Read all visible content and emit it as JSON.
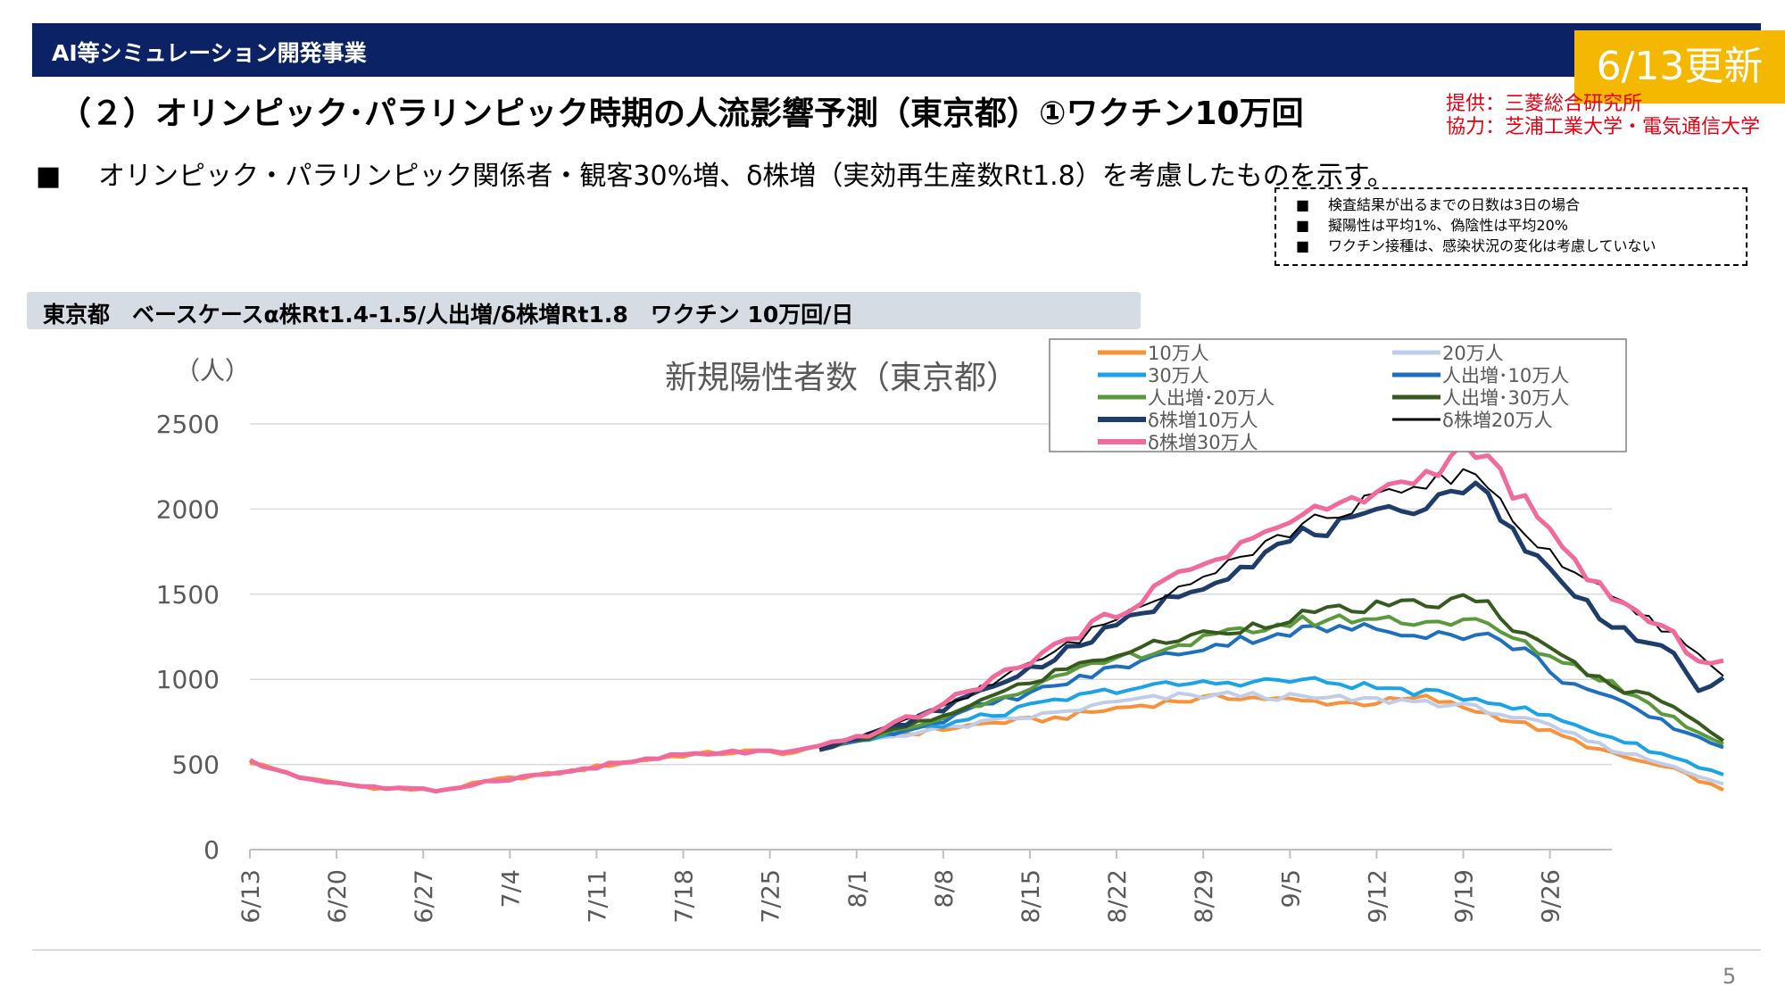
{
  "header": {
    "title": "AI等シミュレーション開発事業",
    "update_badge": "6/13更新"
  },
  "page_title": "（２）オリンピック･パラリンピック時期の人流影響予測（東京都）①ワクチン10万回",
  "credits": {
    "provider": "提供：三菱総合研究所",
    "cooperation": "協力：芝浦工業大学・電気通信大学"
  },
  "bullet": {
    "marker": "■",
    "text": "オリンピック・パラリンピック関係者・観客30%増、δ株増（実効再生産数Rt1.8）を考慮したものを示す。"
  },
  "notes": {
    "marker": "■",
    "items": [
      "検査結果が出るまでの日数は3日の場合",
      "擬陽性は平均1%、偽陰性は平均20%",
      "ワクチン接種は、感染状況の変化は考慮していない"
    ]
  },
  "scenario_label": "東京都　ベースケースα株Rt1.4-1.5/人出増/δ株増Rt1.8　ワクチン 10万回/日",
  "page_number": "5",
  "colors": {
    "header_bg": "#0b2265",
    "badge_bg": "#f5b800",
    "credit_text": "#e60012"
  },
  "chart_data": {
    "type": "line",
    "title": "新規陽性者数（東京都）",
    "ylabel": "（人）",
    "xlabel": "",
    "ylim": [
      0,
      2500
    ],
    "yticks": [
      0,
      500,
      1000,
      1500,
      2000,
      2500
    ],
    "grid": true,
    "legend_position": "top-right",
    "x_start": "6/13",
    "x_tick_labels": [
      "6/13",
      "6/20",
      "6/27",
      "7/4",
      "7/11",
      "7/18",
      "7/25",
      "8/1",
      "8/8",
      "8/15",
      "8/22",
      "8/29",
      "9/5",
      "9/12",
      "9/19",
      "9/26"
    ],
    "x_tick_interval_days": 7,
    "x_count": 111,
    "series": [
      {
        "name": "10万人",
        "color": "#f7923a",
        "width": 4,
        "points": [
          [
            0,
            515
          ],
          [
            5,
            410
          ],
          [
            10,
            365
          ],
          [
            15,
            345
          ],
          [
            20,
            410
          ],
          [
            25,
            450
          ],
          [
            30,
            510
          ],
          [
            35,
            555
          ],
          [
            40,
            575
          ],
          [
            44,
            570
          ],
          [
            46,
            600
          ],
          [
            50,
            650
          ],
          [
            55,
            700
          ],
          [
            60,
            745
          ],
          [
            65,
            770
          ],
          [
            70,
            830
          ],
          [
            75,
            875
          ],
          [
            80,
            900
          ],
          [
            85,
            870
          ],
          [
            90,
            860
          ],
          [
            95,
            890
          ],
          [
            100,
            800
          ],
          [
            105,
            690
          ],
          [
            110,
            560
          ],
          [
            115,
            470
          ],
          [
            119,
            350
          ]
        ]
      },
      {
        "name": "20万人",
        "color": "#bfcde8",
        "width": 4,
        "points": [
          [
            46,
            600
          ],
          [
            50,
            650
          ],
          [
            55,
            700
          ],
          [
            60,
            750
          ],
          [
            65,
            800
          ],
          [
            70,
            865
          ],
          [
            75,
            900
          ],
          [
            80,
            910
          ],
          [
            85,
            890
          ],
          [
            90,
            880
          ],
          [
            95,
            870
          ],
          [
            100,
            820
          ],
          [
            105,
            720
          ],
          [
            110,
            590
          ],
          [
            115,
            490
          ],
          [
            119,
            385
          ]
        ]
      },
      {
        "name": "30万人",
        "color": "#1ba3e6",
        "width": 4,
        "points": [
          [
            46,
            600
          ],
          [
            50,
            650
          ],
          [
            55,
            720
          ],
          [
            60,
            790
          ],
          [
            65,
            870
          ],
          [
            70,
            940
          ],
          [
            75,
            970
          ],
          [
            80,
            985
          ],
          [
            85,
            995
          ],
          [
            90,
            960
          ],
          [
            95,
            920
          ],
          [
            100,
            880
          ],
          [
            105,
            780
          ],
          [
            110,
            660
          ],
          [
            115,
            540
          ],
          [
            119,
            440
          ]
        ]
      },
      {
        "name": "人出増･10万人",
        "color": "#1f6fbf",
        "width": 4,
        "points": [
          [
            46,
            600
          ],
          [
            50,
            660
          ],
          [
            55,
            740
          ],
          [
            60,
            860
          ],
          [
            65,
            960
          ],
          [
            70,
            1070
          ],
          [
            75,
            1160
          ],
          [
            80,
            1230
          ],
          [
            85,
            1290
          ],
          [
            90,
            1300
          ],
          [
            95,
            1270
          ],
          [
            98,
            1260
          ],
          [
            100,
            1250
          ],
          [
            103,
            1170
          ],
          [
            106,
            1000
          ],
          [
            110,
            880
          ],
          [
            115,
            720
          ],
          [
            119,
            600
          ]
        ]
      },
      {
        "name": "人出増･20万人",
        "color": "#5b9a3c",
        "width": 4,
        "points": [
          [
            46,
            600
          ],
          [
            50,
            660
          ],
          [
            55,
            750
          ],
          [
            60,
            890
          ],
          [
            65,
            1000
          ],
          [
            70,
            1120
          ],
          [
            75,
            1200
          ],
          [
            80,
            1280
          ],
          [
            85,
            1340
          ],
          [
            90,
            1360
          ],
          [
            95,
            1340
          ],
          [
            98,
            1340
          ],
          [
            100,
            1320
          ],
          [
            103,
            1200
          ],
          [
            106,
            1110
          ],
          [
            110,
            980
          ],
          [
            115,
            770
          ],
          [
            119,
            620
          ]
        ]
      },
      {
        "name": "人出増･30万人",
        "color": "#375a1f",
        "width": 4,
        "points": [
          [
            46,
            600
          ],
          [
            50,
            660
          ],
          [
            55,
            760
          ],
          [
            60,
            900
          ],
          [
            65,
            1040
          ],
          [
            70,
            1150
          ],
          [
            75,
            1240
          ],
          [
            80,
            1300
          ],
          [
            85,
            1380
          ],
          [
            90,
            1420
          ],
          [
            95,
            1440
          ],
          [
            98,
            1470
          ],
          [
            100,
            1440
          ],
          [
            103,
            1250
          ],
          [
            106,
            1130
          ],
          [
            110,
            960
          ],
          [
            115,
            860
          ],
          [
            119,
            640
          ]
        ]
      },
      {
        "name": "δ株増10万人",
        "color": "#1f3d6b",
        "width": 5,
        "points": [
          [
            46,
            600
          ],
          [
            50,
            670
          ],
          [
            55,
            800
          ],
          [
            60,
            960
          ],
          [
            65,
            1130
          ],
          [
            70,
            1310
          ],
          [
            75,
            1500
          ],
          [
            80,
            1660
          ],
          [
            85,
            1850
          ],
          [
            90,
            1930
          ],
          [
            95,
            2040
          ],
          [
            98,
            2140
          ],
          [
            100,
            2080
          ],
          [
            103,
            1780
          ],
          [
            106,
            1560
          ],
          [
            110,
            1330
          ],
          [
            115,
            1130
          ],
          [
            117,
            940
          ],
          [
            119,
            1010
          ]
        ]
      },
      {
        "name": "δ株増20万人",
        "color": "#000000",
        "width": 2,
        "points": [
          [
            46,
            600
          ],
          [
            50,
            670
          ],
          [
            55,
            810
          ],
          [
            60,
            980
          ],
          [
            65,
            1160
          ],
          [
            70,
            1360
          ],
          [
            75,
            1560
          ],
          [
            80,
            1730
          ],
          [
            85,
            1900
          ],
          [
            90,
            2040
          ],
          [
            95,
            2130
          ],
          [
            98,
            2230
          ],
          [
            100,
            2150
          ],
          [
            103,
            1850
          ],
          [
            106,
            1690
          ],
          [
            110,
            1470
          ],
          [
            115,
            1260
          ],
          [
            119,
            1020
          ]
        ]
      },
      {
        "name": "δ株増30万人",
        "color": "#f06a9b",
        "width": 5,
        "points": [
          [
            0,
            515
          ],
          [
            5,
            410
          ],
          [
            10,
            365
          ],
          [
            15,
            345
          ],
          [
            20,
            410
          ],
          [
            25,
            450
          ],
          [
            30,
            510
          ],
          [
            35,
            555
          ],
          [
            40,
            575
          ],
          [
            44,
            570
          ],
          [
            46,
            600
          ],
          [
            50,
            680
          ],
          [
            55,
            820
          ],
          [
            60,
            1000
          ],
          [
            65,
            1190
          ],
          [
            70,
            1390
          ],
          [
            75,
            1610
          ],
          [
            80,
            1790
          ],
          [
            85,
            1960
          ],
          [
            90,
            2070
          ],
          [
            95,
            2200
          ],
          [
            98,
            2350
          ],
          [
            100,
            2280
          ],
          [
            103,
            2030
          ],
          [
            106,
            1760
          ],
          [
            110,
            1480
          ],
          [
            115,
            1250
          ],
          [
            117,
            1120
          ],
          [
            119,
            1110
          ]
        ]
      }
    ]
  }
}
